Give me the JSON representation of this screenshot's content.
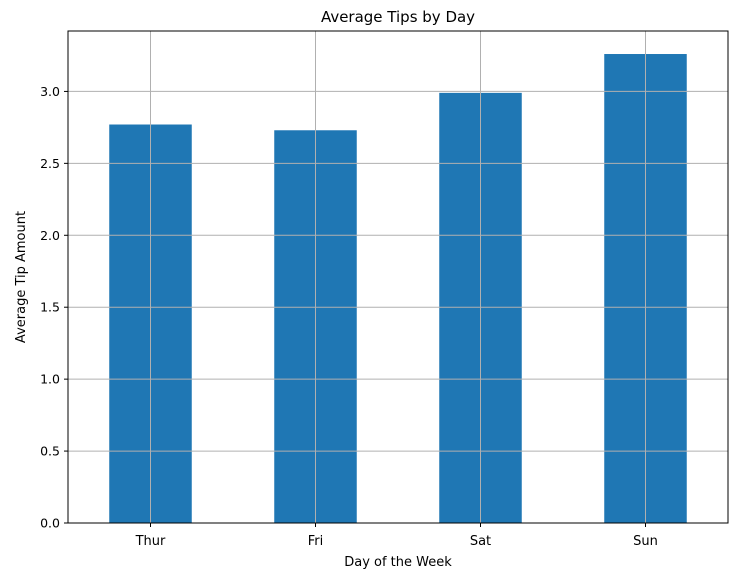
{
  "chart_data": {
    "type": "bar",
    "title": "Average Tips by Day",
    "xlabel": "Day of the Week",
    "ylabel": "Average Tip Amount",
    "categories": [
      "Thur",
      "Fri",
      "Sat",
      "Sun"
    ],
    "values": [
      2.77,
      2.73,
      2.99,
      3.26
    ],
    "ylim": [
      0,
      3.42
    ],
    "yticks": [
      0.0,
      0.5,
      1.0,
      1.5,
      2.0,
      2.5,
      3.0
    ],
    "ytick_labels": [
      "0.0",
      "0.5",
      "1.0",
      "1.5",
      "2.0",
      "2.5",
      "3.0"
    ],
    "grid": true,
    "bar_color": "#1f77b4",
    "grid_color": "#b0b0b0",
    "legend": null
  }
}
